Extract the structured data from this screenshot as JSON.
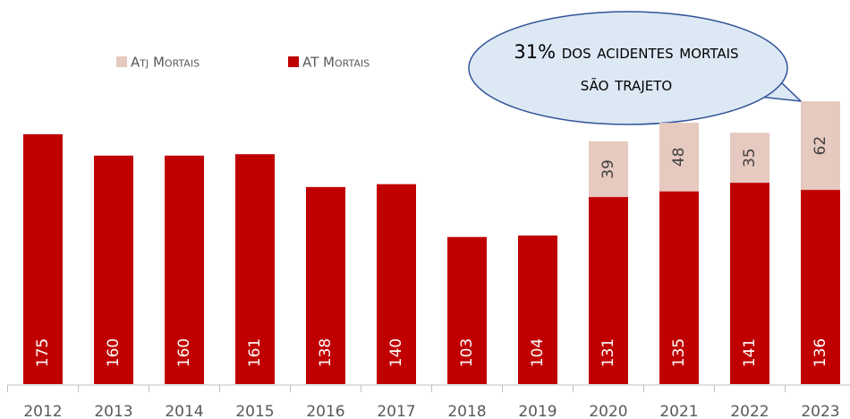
{
  "chart_data": {
    "type": "stacked_bar",
    "annotation": "31% dos acidentes mortais são trajeto",
    "categories": [
      "2012",
      "2013",
      "2014",
      "2015",
      "2016",
      "2017",
      "2018",
      "2019",
      "2020",
      "2021",
      "2022",
      "2023"
    ],
    "series": [
      {
        "name": "AT Mortais",
        "color": "#c00000",
        "values": [
          175,
          160,
          160,
          161,
          138,
          140,
          103,
          104,
          131,
          135,
          141,
          136
        ]
      },
      {
        "name": "Atj Mortais",
        "color": "#e6c9bf",
        "values": [
          null,
          null,
          null,
          null,
          null,
          null,
          null,
          null,
          39,
          48,
          35,
          62
        ]
      }
    ],
    "legend_order": [
      1,
      0
    ],
    "ylim": [
      0,
      200
    ]
  }
}
